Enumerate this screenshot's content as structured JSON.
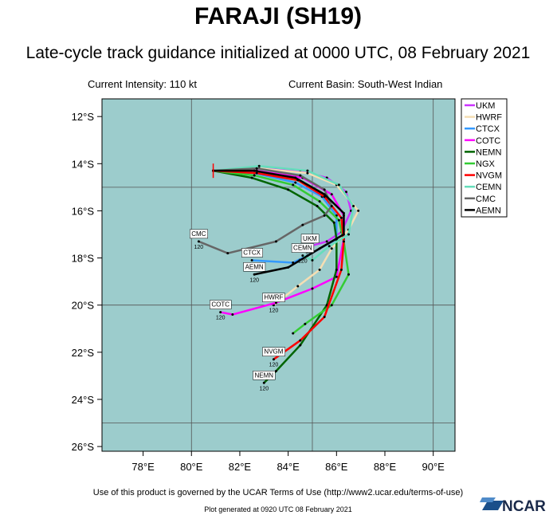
{
  "chart_data": {
    "type": "track-map",
    "title": "FARAJI (SH19)",
    "subtitle": "Late-cycle track guidance initialized at 0000 UTC, 08 February 2021",
    "intensity": "Current Intensity: 110 kt",
    "basin": "Current Basin: South-West Indian",
    "footer": "Use of this product is governed by the UCAR Terms of Use (http://www2.ucar.edu/terms-of-use)",
    "generated": "Plot generated at 0920 UTC  08 February 2021",
    "logo": "NCAR",
    "background": "#9ccccc",
    "xlim": [
      76.3,
      90.9
    ],
    "ylim": [
      -26.2,
      -11.25
    ],
    "xticks": [
      {
        "value": 78,
        "label": "78°E"
      },
      {
        "value": 80,
        "label": "80°E"
      },
      {
        "value": 82,
        "label": "82°E"
      },
      {
        "value": 84,
        "label": "84°E"
      },
      {
        "value": 86,
        "label": "86°E"
      },
      {
        "value": 88,
        "label": "88°E"
      },
      {
        "value": 90,
        "label": "90°E"
      }
    ],
    "yticks": [
      {
        "value": -12,
        "label": "12°S"
      },
      {
        "value": -14,
        "label": "14°S"
      },
      {
        "value": -16,
        "label": "16°S"
      },
      {
        "value": -18,
        "label": "18°S"
      },
      {
        "value": -20,
        "label": "20°S"
      },
      {
        "value": -22,
        "label": "22°S"
      },
      {
        "value": -24,
        "label": "24°S"
      },
      {
        "value": -26,
        "label": "26°S"
      }
    ],
    "xgrid": [
      80,
      85,
      90
    ],
    "ygrid": [
      -15,
      -20,
      -25
    ],
    "storm_position": {
      "lon": 80.9,
      "lat": -14.3
    },
    "series": [
      {
        "name": "UKM",
        "color": "#cc33ff",
        "end_tau": 120,
        "lon": [
          80.9,
          82.5,
          84.5,
          85.6,
          86.4,
          86.6,
          86.2,
          85.6,
          84.9
        ],
        "lat": [
          -14.3,
          -14.2,
          -14.3,
          -14.6,
          -15.2,
          -16.0,
          -16.9,
          -17.3,
          -17.5
        ]
      },
      {
        "name": "HWRF",
        "color": "#f5deb3",
        "end_tau": 120,
        "lon": [
          80.9,
          82.8,
          84.8,
          86.0,
          86.9,
          86.5,
          85.8,
          85.3,
          84.4,
          83.4
        ],
        "lat": [
          -14.3,
          -14.2,
          -14.4,
          -14.9,
          -16.0,
          -16.8,
          -17.6,
          -18.5,
          -19.2,
          -20.0
        ]
      },
      {
        "name": "CTCX",
        "color": "#3399ff",
        "end_tau": 120,
        "lon": [
          80.9,
          82.6,
          84.3,
          85.4,
          86.0,
          86.0,
          84.8,
          84.2,
          82.5
        ],
        "lat": [
          -14.3,
          -14.4,
          -14.8,
          -15.4,
          -16.2,
          -17.2,
          -17.9,
          -18.2,
          -18.1
        ]
      },
      {
        "name": "COTC",
        "color": "#ff00ff",
        "end_tau": 120,
        "lon": [
          80.9,
          82.7,
          84.6,
          85.8,
          86.3,
          86.3,
          86.0,
          85.0,
          83.5,
          81.7,
          81.2
        ],
        "lat": [
          -14.3,
          -14.3,
          -14.6,
          -15.3,
          -16.2,
          -17.2,
          -18.8,
          -19.3,
          -19.9,
          -20.4,
          -20.3
        ]
      },
      {
        "name": "NEMN",
        "color": "#006400",
        "end_tau": 120,
        "lon": [
          80.9,
          82.5,
          84.0,
          85.2,
          85.9,
          86.0,
          86.0,
          85.6,
          84.5,
          83.5,
          83.0
        ],
        "lat": [
          -14.3,
          -14.6,
          -15.1,
          -15.8,
          -16.5,
          -17.2,
          -18.5,
          -20.0,
          -21.7,
          -22.8,
          -23.3
        ]
      },
      {
        "name": "NGX",
        "color": "#33cc33",
        "lon": [
          80.9,
          82.6,
          84.2,
          85.3,
          86.1,
          86.3,
          86.5,
          85.8,
          84.7,
          84.2
        ],
        "lat": [
          -14.3,
          -14.5,
          -14.9,
          -15.6,
          -16.4,
          -17.3,
          -18.7,
          -20.0,
          -20.8,
          -21.2
        ]
      },
      {
        "name": "NVGM",
        "color": "#ff0000",
        "end_tau": 120,
        "lon": [
          80.9,
          82.7,
          84.4,
          85.5,
          86.2,
          86.3,
          86.2,
          85.5,
          84.5,
          83.4
        ],
        "lat": [
          -14.3,
          -14.4,
          -14.7,
          -15.4,
          -16.3,
          -17.3,
          -18.5,
          -20.5,
          -21.5,
          -22.3
        ]
      },
      {
        "name": "CEMN",
        "color": "#66ddbb",
        "end_tau": 120,
        "lon": [
          80.9,
          82.8,
          84.8,
          86.1,
          86.7,
          86.5,
          85.7,
          85.0,
          84.6
        ],
        "lat": [
          -14.3,
          -14.1,
          -14.3,
          -14.9,
          -15.8,
          -17.0,
          -17.5,
          -18.1,
          -17.9
        ]
      },
      {
        "name": "CMC",
        "color": "#666666",
        "end_tau": 120,
        "lon": [
          80.9,
          82.7,
          84.5,
          85.5,
          85.8,
          85.5,
          84.6,
          83.5,
          81.5,
          80.3
        ],
        "lat": [
          -14.3,
          -14.2,
          -14.5,
          -15.1,
          -15.8,
          -16.2,
          -16.6,
          -17.3,
          -17.8,
          -17.3
        ]
      },
      {
        "name": "AEMN",
        "color": "#000000",
        "end_tau": 120,
        "lon": [
          80.9,
          82.6,
          84.3,
          85.5,
          86.3,
          86.3,
          85.3,
          84.0,
          82.6
        ],
        "lat": [
          -14.3,
          -14.3,
          -14.6,
          -15.3,
          -16.1,
          -17.0,
          -17.6,
          -18.4,
          -18.7
        ]
      }
    ]
  }
}
